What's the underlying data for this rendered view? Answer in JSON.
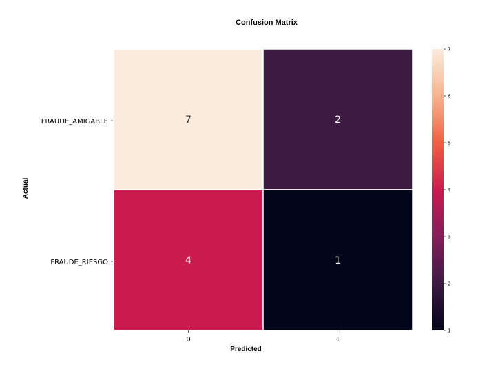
{
  "chart_data": {
    "type": "heatmap",
    "title": "Confusion Matrix",
    "xlabel": "Predicted",
    "ylabel": "Actual",
    "x_categories": [
      "0",
      "1"
    ],
    "y_categories": [
      "FRAUDE_AMIGABLE",
      "FRAUDE_RIESGO"
    ],
    "values": [
      [
        7,
        2
      ],
      [
        4,
        1
      ]
    ],
    "colorbar": {
      "range": [
        1,
        7
      ],
      "ticks": [
        "1",
        "2",
        "3",
        "4",
        "5",
        "6",
        "7"
      ],
      "colormap": "rocket"
    },
    "grid": false
  }
}
